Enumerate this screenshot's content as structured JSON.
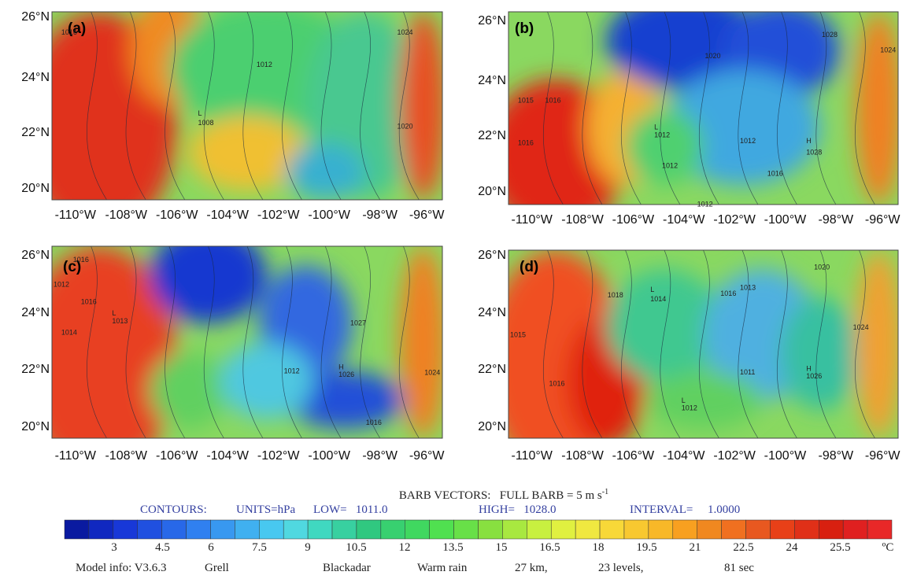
{
  "panels": [
    {
      "label": "(a)",
      "contour_labels": [
        "1016",
        "1012",
        "1024",
        "L",
        "1008",
        "1020"
      ]
    },
    {
      "label": "(b)",
      "contour_labels": [
        "1028",
        "1020",
        "1024",
        "1015",
        "1016",
        "1016",
        "L",
        "1012",
        "1012",
        "1012",
        "H",
        "1028",
        "1016",
        "1012"
      ]
    },
    {
      "label": "(c)",
      "contour_labels": [
        "1016",
        "1012",
        "1016",
        "L",
        "1013",
        "1014",
        "1027",
        "1012",
        "H",
        "1026",
        "1024",
        "1016"
      ]
    },
    {
      "label": "(d)",
      "contour_labels": [
        "1020",
        "1018",
        "L",
        "1014",
        "1016",
        "1013",
        "1015",
        "1024",
        "1011",
        "H",
        "1026",
        "1016",
        "L",
        "1012"
      ]
    }
  ],
  "lat_labels": [
    "26°N",
    "24°N",
    "22°N",
    "20°N"
  ],
  "lon_labels": [
    "-110°W",
    "-108°W",
    "-106°W",
    "-104°W",
    "-102°W",
    "-100°W",
    "-98°W",
    "-96°W"
  ],
  "legend": {
    "barb": "BARB VECTORS:   FULL BARB = 5 m s",
    "barb_unit_exp": "-1",
    "contours": "CONTOURS:",
    "units": "UNITS=hPa",
    "low": "LOW=   1011.0",
    "high": "HIGH=   1028.0",
    "interval": "INTERVAL=     1.0000"
  },
  "colorbar": {
    "labels": [
      "3",
      "4.5",
      "6",
      "7.5",
      "9",
      "10.5",
      "12",
      "13.5",
      "15",
      "16.5",
      "18",
      "19.5",
      "21",
      "22.5",
      "24",
      "25.5"
    ],
    "unit": "ºC"
  },
  "model_info": [
    "Model info: V3.6.3",
    "Grell",
    "Blackadar",
    "Warm rain",
    "27 km,",
    "23 levels,",
    "81 sec"
  ]
}
